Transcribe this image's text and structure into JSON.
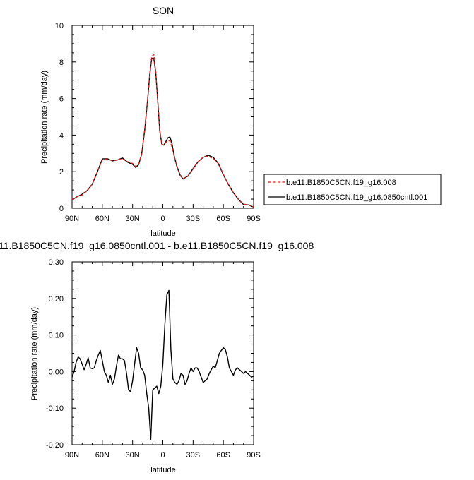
{
  "colors": {
    "test_series": "#e0201b",
    "control_series": "#000000",
    "frame": "#000000",
    "background": "#ffffff"
  },
  "chart_data": [
    {
      "type": "line",
      "title": "SON",
      "xlabel": "latitude",
      "ylabel": "Precipitation rate (mm/day)",
      "xlim": [
        90,
        -90
      ],
      "ylim": [
        0,
        10
      ],
      "x_ticks": [
        90,
        60,
        30,
        0,
        -30,
        -60,
        -90
      ],
      "x_tick_labels": [
        "90N",
        "60N",
        "30N",
        "0",
        "30S",
        "60S",
        "90S"
      ],
      "y_ticks": [
        0,
        2,
        4,
        6,
        8,
        10
      ],
      "y_tick_labels": [
        "0",
        "2",
        "4",
        "6",
        "8",
        "10"
      ],
      "legend": {
        "placement": "right",
        "entries": [
          {
            "label": "b.e11.B1850C5CN.f19_g16.008",
            "style": "dashed",
            "color": "#e0201b"
          },
          {
            "label": "b.e11.B1850C5CN.f19_g16.0850cntl.001",
            "style": "solid",
            "color": "#000000"
          }
        ]
      },
      "series": [
        {
          "name": "b.e11.B1850C5CN.f19_g16.008",
          "style": "dashed",
          "color": "#e0201b",
          "x": [
            90,
            85,
            80,
            75,
            70,
            65,
            60,
            55,
            50,
            45,
            40,
            35,
            30,
            27,
            24,
            21,
            18,
            15,
            13,
            11,
            9,
            7,
            5,
            3,
            1,
            -1,
            -3,
            -5,
            -7,
            -9,
            -11,
            -14,
            -17,
            -20,
            -25,
            -30,
            -35,
            -40,
            -45,
            -50,
            -55,
            -60,
            -65,
            -70,
            -75,
            -80,
            -85,
            -90
          ],
          "y": [
            0.47,
            0.64,
            0.73,
            0.96,
            1.31,
            1.97,
            2.65,
            2.7,
            2.6,
            2.65,
            2.7,
            2.55,
            2.45,
            2.28,
            2.4,
            3.0,
            4.3,
            6.0,
            7.3,
            8.3,
            8.4,
            7.4,
            5.8,
            4.2,
            3.5,
            3.45,
            3.6,
            3.7,
            3.68,
            3.35,
            2.9,
            2.3,
            1.85,
            1.62,
            1.75,
            2.15,
            2.55,
            2.8,
            2.85,
            2.72,
            2.45,
            1.85,
            1.3,
            0.85,
            0.5,
            0.22,
            0.19,
            0.07
          ]
        },
        {
          "name": "b.e11.B1850C5CN.f19_g16.0850cntl.001",
          "style": "solid",
          "color": "#000000",
          "x": [
            90,
            85,
            80,
            75,
            70,
            65,
            60,
            55,
            50,
            45,
            40,
            35,
            30,
            27,
            24,
            21,
            18,
            15,
            13,
            11,
            9,
            7,
            5,
            3,
            1,
            -1,
            -3,
            -5,
            -7,
            -9,
            -11,
            -14,
            -17,
            -20,
            -25,
            -30,
            -35,
            -40,
            -45,
            -50,
            -55,
            -60,
            -65,
            -70,
            -75,
            -80,
            -85,
            -90
          ],
          "y": [
            0.46,
            0.63,
            0.77,
            0.97,
            1.32,
            1.98,
            2.7,
            2.71,
            2.59,
            2.64,
            2.75,
            2.52,
            2.4,
            2.23,
            2.38,
            2.95,
            4.27,
            6.0,
            7.3,
            8.2,
            8.2,
            7.4,
            5.8,
            4.2,
            3.5,
            3.45,
            3.65,
            3.85,
            3.9,
            3.55,
            2.92,
            2.28,
            1.82,
            1.6,
            1.77,
            2.17,
            2.55,
            2.78,
            2.9,
            2.78,
            2.45,
            1.83,
            1.3,
            0.85,
            0.48,
            0.2,
            0.18,
            0.06
          ]
        }
      ]
    },
    {
      "type": "line",
      "title": "11.B1850C5CN.f19_g16.0850cntl.001 - b.e11.B1850C5CN.f19_g16.008",
      "xlabel": "latitude",
      "ylabel": "Precipitation rate (mm/day)",
      "xlim": [
        90,
        -90
      ],
      "ylim": [
        -0.2,
        0.3
      ],
      "x_ticks": [
        90,
        60,
        30,
        0,
        -30,
        -60,
        -90
      ],
      "x_tick_labels": [
        "90N",
        "60N",
        "30N",
        "0",
        "30S",
        "60S",
        "90S"
      ],
      "y_ticks": [
        -0.2,
        -0.1,
        0,
        0.1,
        0.2,
        0.3
      ],
      "y_tick_labels": [
        "-0.20",
        "-0.10",
        "0.00",
        "0.10",
        "0.20",
        "0.30"
      ],
      "series": [
        {
          "style": "solid",
          "color": "#000000",
          "x": [
            90,
            88,
            86,
            84,
            82,
            80,
            78,
            76,
            74,
            72,
            70,
            68,
            66,
            64,
            62,
            60,
            58,
            56,
            54,
            52,
            50,
            48,
            46,
            44,
            42,
            40,
            38,
            36,
            34,
            32,
            30,
            28,
            26,
            24,
            22,
            20,
            18,
            16,
            14,
            12,
            10,
            8,
            6,
            4,
            2,
            0,
            -2,
            -4,
            -6,
            -8,
            -10,
            -12,
            -14,
            -16,
            -18,
            -20,
            -22,
            -24,
            -26,
            -28,
            -30,
            -32,
            -34,
            -36,
            -38,
            -40,
            -42,
            -44,
            -46,
            -48,
            -50,
            -52,
            -54,
            -56,
            -58,
            -60,
            -62,
            -64,
            -66,
            -68,
            -70,
            -72,
            -74,
            -76,
            -78,
            -80,
            -82,
            -84,
            -86,
            -88,
            -90
          ],
          "y": [
            -0.015,
            0.0,
            0.025,
            0.04,
            0.035,
            0.02,
            0.005,
            0.02,
            0.038,
            0.01,
            0.008,
            0.01,
            0.03,
            0.045,
            0.058,
            0.03,
            0.0,
            -0.01,
            -0.03,
            -0.01,
            -0.035,
            -0.02,
            0.015,
            0.045,
            0.035,
            0.035,
            0.03,
            -0.005,
            -0.05,
            -0.055,
            -0.025,
            0.02,
            0.065,
            0.05,
            0.01,
            0.005,
            -0.01,
            -0.06,
            -0.1,
            -0.186,
            -0.05,
            -0.045,
            -0.04,
            -0.06,
            -0.04,
            0.02,
            0.13,
            0.21,
            0.222,
            0.06,
            -0.02,
            -0.03,
            -0.035,
            -0.025,
            -0.005,
            -0.01,
            -0.035,
            -0.025,
            -0.005,
            0.01,
            0.0,
            0.01,
            0.01,
            0.0,
            -0.015,
            -0.03,
            -0.025,
            -0.02,
            -0.005,
            0.005,
            0.015,
            0.01,
            0.03,
            0.05,
            0.058,
            0.065,
            0.06,
            0.04,
            0.01,
            0.0,
            -0.01,
            0.005,
            0.01,
            0.005,
            0.0,
            -0.005,
            0.0,
            -0.005,
            -0.01,
            -0.015,
            -0.012
          ]
        }
      ]
    }
  ]
}
